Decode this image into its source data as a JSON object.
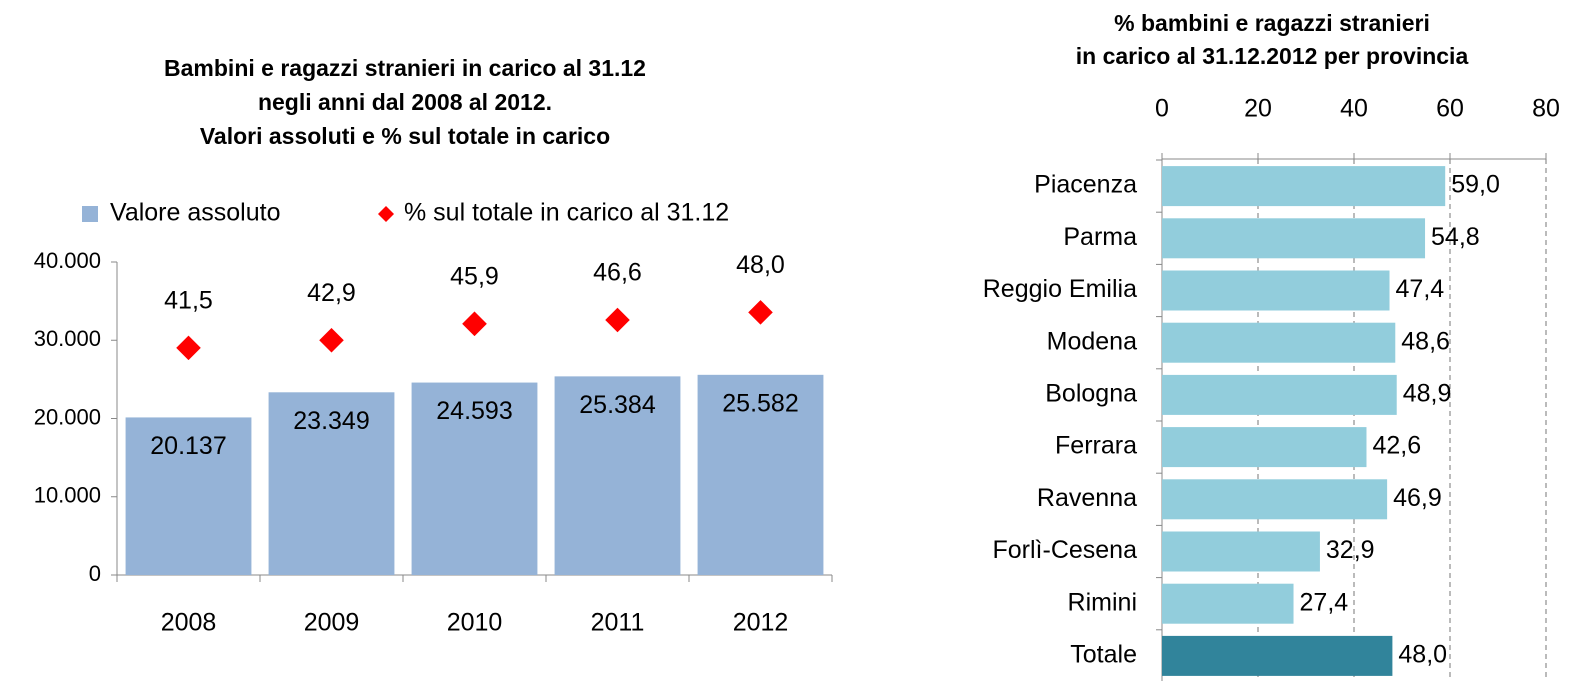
{
  "chart_data": [
    {
      "type": "bar",
      "title": [
        "Bambini e ragazzi stranieri in carico al 31.12",
        "negli anni dal 2008 al 2012.",
        "Valori assoluti e % sul totale in carico"
      ],
      "categories": [
        "2008",
        "2009",
        "2010",
        "2011",
        "2012"
      ],
      "series": [
        {
          "name": "Valore assoluto",
          "color": "#95b3d7",
          "values": [
            20137,
            23349,
            24593,
            25384,
            25582
          ],
          "value_labels": [
            "20.137",
            "23.349",
            "24.593",
            "25.384",
            "25.582"
          ]
        },
        {
          "name": "% sul totale in carico al 31.12",
          "type": "scatter",
          "marker": "diamond",
          "axis": "y2",
          "color": "#ff0000",
          "values": [
            41.5,
            42.9,
            45.9,
            46.6,
            48.0
          ],
          "value_labels": [
            "41,5",
            "42,9",
            "45,9",
            "46,6",
            "48,0"
          ]
        }
      ],
      "ylim": [
        0,
        40000
      ],
      "yticks": [
        0,
        {
          "value": 10000,
          "label": "10.000"
        },
        {
          "value": 20000,
          "label": "20.000"
        },
        {
          "value": 30000,
          "label": "30.000"
        },
        {
          "value": 40000,
          "label": "40.000"
        }
      ],
      "y2lim": [
        0,
        57.2
      ],
      "legend": "top"
    },
    {
      "type": "barh",
      "title": [
        "% bambini e ragazzi stranieri",
        "in carico al 31.12.2012 per provincia"
      ],
      "categories": [
        "Piacenza",
        "Parma",
        "Reggio Emilia",
        "Modena",
        "Bologna",
        "Ferrara",
        "Ravenna",
        "Forlì-Cesena",
        "Rimini",
        "Totale"
      ],
      "values": [
        59.0,
        54.8,
        47.4,
        48.6,
        48.9,
        42.6,
        46.9,
        32.9,
        27.4,
        48.0
      ],
      "value_labels": [
        "59,0",
        "54,8",
        "47,4",
        "48,6",
        "48,9",
        "42,6",
        "46,9",
        "32,9",
        "27,4",
        "48,0"
      ],
      "colors": [
        "#92cddc",
        "#92cddc",
        "#92cddc",
        "#92cddc",
        "#92cddc",
        "#92cddc",
        "#92cddc",
        "#92cddc",
        "#92cddc",
        "#31849b"
      ],
      "xlim": [
        0,
        80
      ],
      "xticks": [
        0,
        20,
        40,
        60,
        80
      ],
      "grid": true
    }
  ]
}
